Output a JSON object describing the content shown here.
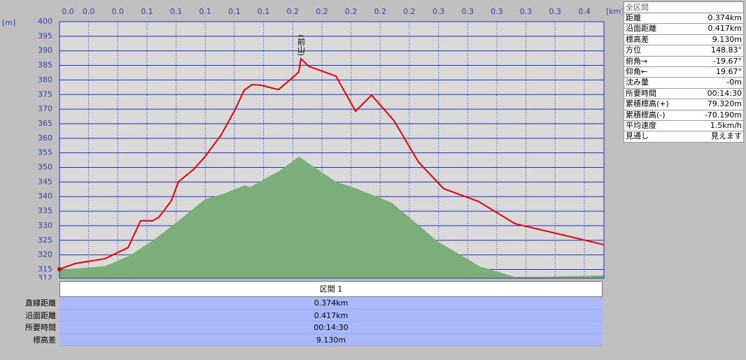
{
  "chart_data": {
    "type": "line",
    "y_unit_label": "[m]",
    "x_unit_label": "[km]",
    "xlim": [
      0,
      0.4
    ],
    "ylim": [
      312,
      400
    ],
    "yticks": [
      400,
      395,
      390,
      385,
      380,
      375,
      370,
      365,
      360,
      355,
      350,
      345,
      340,
      335,
      330,
      325,
      320,
      315,
      312
    ],
    "xticks": [
      {
        "value": 0,
        "label": "0.0"
      },
      {
        "value": 0.0214,
        "label": "0.0"
      },
      {
        "value": 0.0428,
        "label": "0.0"
      },
      {
        "value": 0.0643,
        "label": "0.1"
      },
      {
        "value": 0.0857,
        "label": "0.1"
      },
      {
        "value": 0.1071,
        "label": "0.1"
      },
      {
        "value": 0.1285,
        "label": "0.1"
      },
      {
        "value": 0.1499,
        "label": "0.1"
      },
      {
        "value": 0.1714,
        "label": "0.2"
      },
      {
        "value": 0.1928,
        "label": "0.2"
      },
      {
        "value": 0.2142,
        "label": "0.2"
      },
      {
        "value": 0.2356,
        "label": "0.2"
      },
      {
        "value": 0.257,
        "label": "0.2"
      },
      {
        "value": 0.2785,
        "label": "0.3"
      },
      {
        "value": 0.2999,
        "label": "0.3"
      },
      {
        "value": 0.3213,
        "label": "0.3"
      },
      {
        "value": 0.3427,
        "label": "0.3"
      },
      {
        "value": 0.3641,
        "label": "0.3"
      },
      {
        "value": 0.3856,
        "label": "0.4"
      }
    ],
    "grid": true,
    "series": [
      {
        "kind": "area",
        "color": "#7bae78",
        "x": [
          0,
          0.0334,
          0.0514,
          0.0694,
          0.0848,
          0.1069,
          0.1208,
          0.1362,
          0.1398,
          0.1619,
          0.1758,
          0.2031,
          0.2185,
          0.2442,
          0.2776,
          0.3085,
          0.3342,
          0.3573,
          0.4
        ],
        "values": [
          314.9,
          316.1,
          319.7,
          325.2,
          330.7,
          339.1,
          341.0,
          343.9,
          343.2,
          348.9,
          353.7,
          345.1,
          342.7,
          337.9,
          324.7,
          316.1,
          312.5,
          312.5,
          313.0
        ]
      },
      {
        "kind": "line",
        "color": "#e80000",
        "x": [
          0,
          0.0113,
          0.0334,
          0.0504,
          0.0596,
          0.0684,
          0.073,
          0.0822,
          0.0874,
          0.0987,
          0.1069,
          0.1188,
          0.129,
          0.1357,
          0.1414,
          0.148,
          0.1609,
          0.1712,
          0.1758,
          0.1774,
          0.183,
          0.2031,
          0.2175,
          0.2293,
          0.2458,
          0.2638,
          0.2823,
          0.3075,
          0.3347,
          0.4
        ],
        "values": [
          315.1,
          317.0,
          318.7,
          322.5,
          331.7,
          331.7,
          332.9,
          338.6,
          345.1,
          349.4,
          353.7,
          361.2,
          369.8,
          376.5,
          378.4,
          378.2,
          376.7,
          380.8,
          382.7,
          387.3,
          384.7,
          381.3,
          369.3,
          374.8,
          366.0,
          351.8,
          342.7,
          338.4,
          330.7,
          323.5
        ]
      }
    ],
    "annotations": [
      {
        "text": "(前山)",
        "x": 0.1774,
        "y": 387.3
      }
    ]
  },
  "summary_panel": {
    "title": "全区間",
    "rows": [
      [
        "距離",
        "0.374km"
      ],
      [
        "沿面距離",
        "0.417km"
      ],
      [
        "標高差",
        "9.130m"
      ],
      [
        "方位",
        "148.83°"
      ],
      [
        "俯角→",
        "-19.67°"
      ],
      [
        "仰角←",
        "19.67°"
      ],
      [
        "沈み量",
        "-0m"
      ],
      [
        "所要時間",
        "00:14:30"
      ],
      [
        "累積標高(+)",
        "79.320m"
      ],
      [
        "累積標高(-)",
        "-70.190m"
      ],
      [
        "平均速度",
        "1.5km/h"
      ],
      [
        "見通し",
        "見えます"
      ]
    ]
  },
  "segment_table": {
    "header": "区間 1",
    "rows": [
      [
        "直線距離",
        "0.374km"
      ],
      [
        "沿面距離",
        "0.417km"
      ],
      [
        "所要時間",
        "00:14:30"
      ],
      [
        "標高差",
        "9.130m"
      ]
    ]
  }
}
